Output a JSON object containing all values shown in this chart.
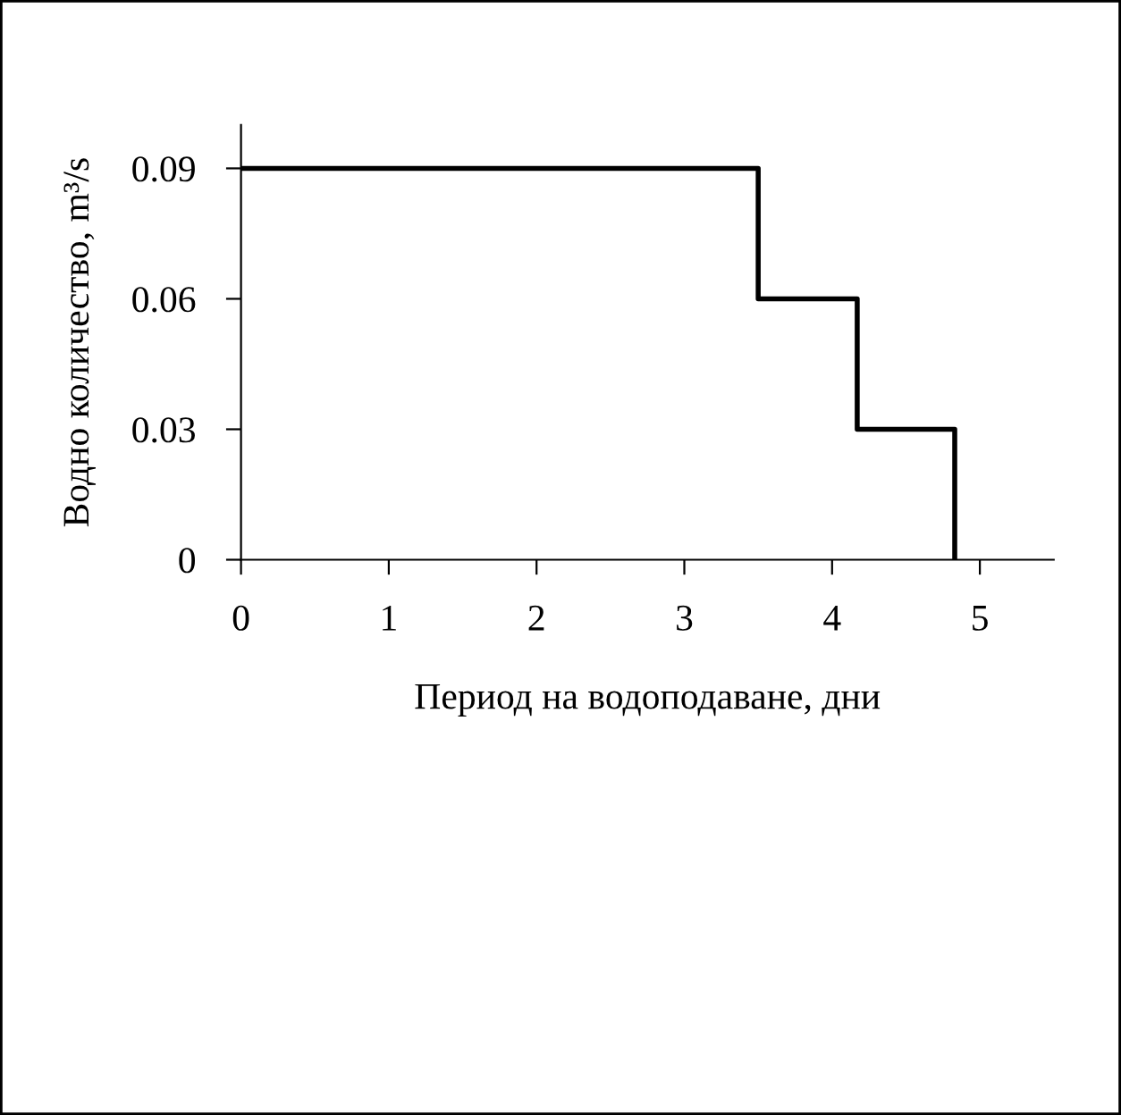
{
  "chart_data": {
    "type": "step",
    "xlabel": "Период на водоподаване, дни",
    "ylabel": "Водно количество, m³/s",
    "x": [
      0,
      3.5,
      4.17,
      4.83
    ],
    "series": [
      {
        "color": "#000000",
        "values": [
          0.09,
          0.06,
          0.03,
          0
        ]
      }
    ],
    "xlim": [
      0,
      5.5
    ],
    "ylim": [
      0,
      0.1
    ],
    "xticks": [
      0,
      1,
      2,
      3,
      4,
      5
    ],
    "yticks": [
      0,
      0.03,
      0.06,
      0.09
    ],
    "grid": false,
    "legend": false
  }
}
